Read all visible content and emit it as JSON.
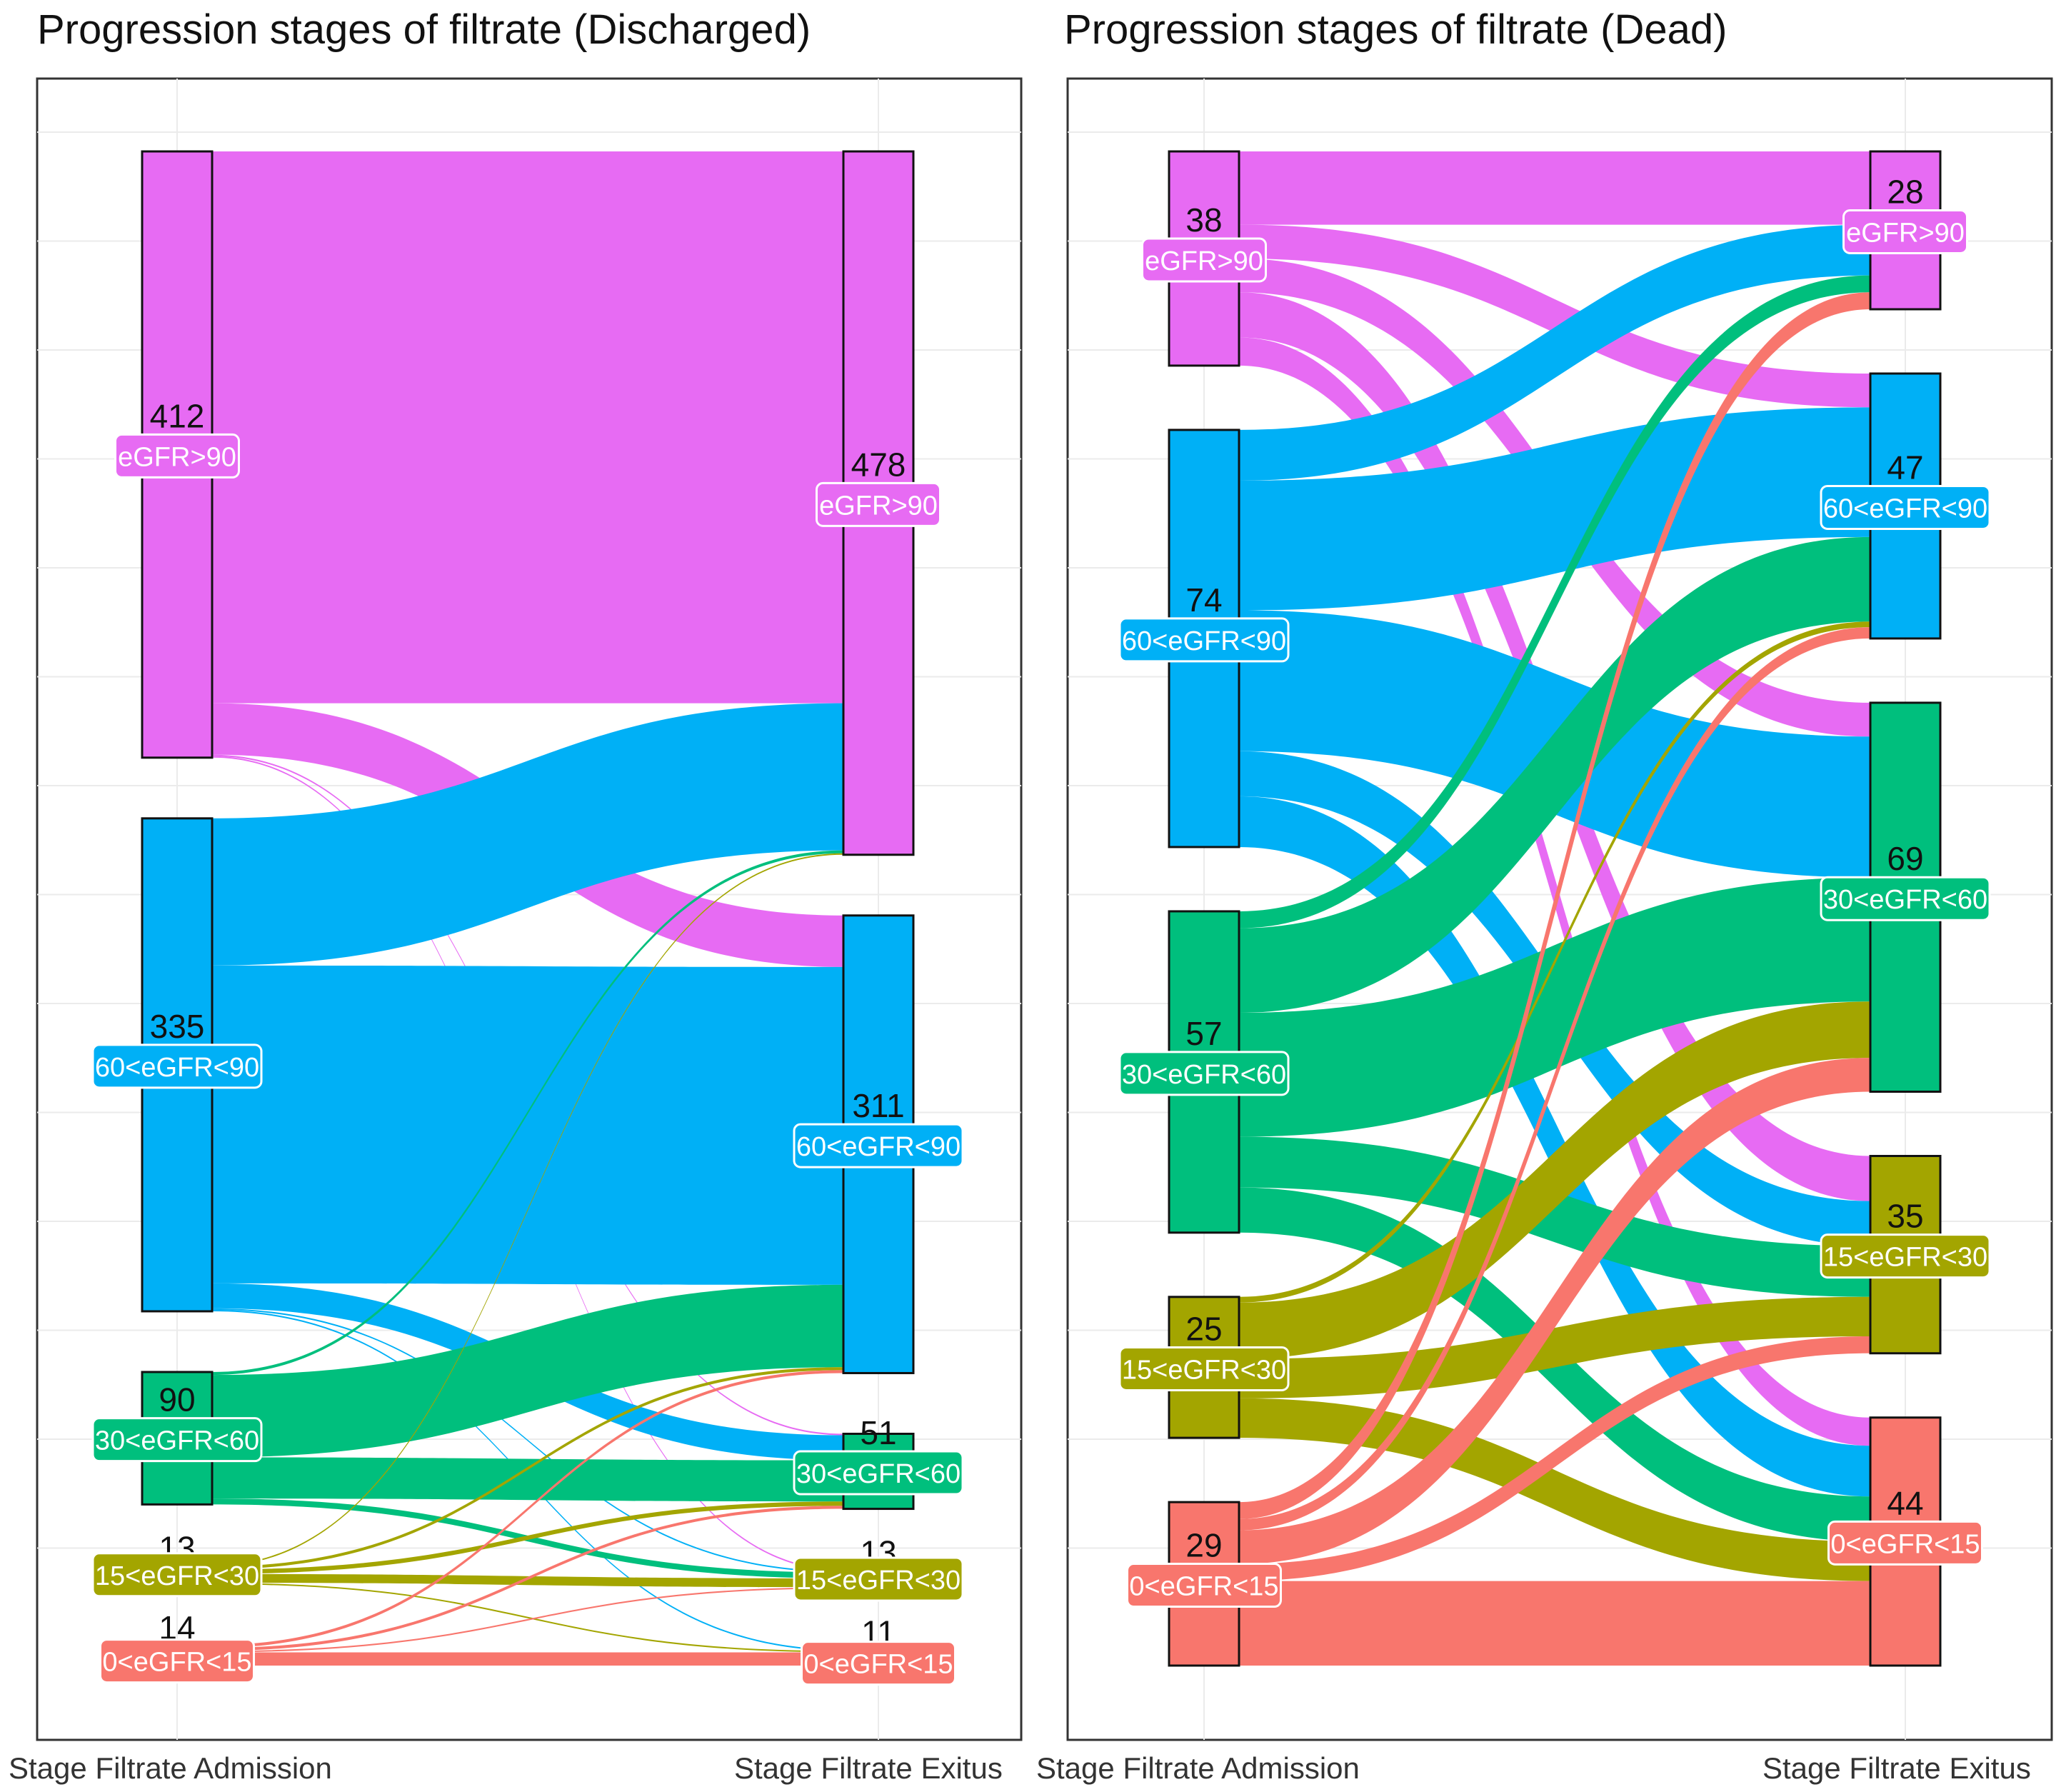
{
  "chart_data": [
    {
      "type": "sankey",
      "title": "Progression stages of filtrate (Discharged)",
      "axes": [
        "Stage Filtrate Admission",
        "Stage Filtrate Exitus"
      ],
      "stages": [
        "eGFR>90",
        "60<eGFR<90",
        "30<eGFR<60",
        "15<eGFR<30",
        "0<eGFR<15"
      ],
      "stage_colors": [
        "#e76bf3",
        "#00b0f6",
        "#00bf7d",
        "#a3a500",
        "#f8766d"
      ],
      "admission_counts": [
        412,
        335,
        90,
        13,
        14
      ],
      "exitus_counts": [
        478,
        311,
        51,
        13,
        11
      ],
      "flows": [
        [
          375,
          35,
          1,
          1,
          0
        ],
        [
          100,
          216,
          17,
          1,
          1
        ],
        [
          2,
          56,
          28,
          4,
          0
        ],
        [
          1,
          2,
          3,
          6,
          1
        ],
        [
          0,
          2,
          2,
          1,
          9
        ]
      ]
    },
    {
      "type": "sankey",
      "title": "Progression stages of filtrate (Dead)",
      "axes": [
        "Stage Filtrate Admission",
        "Stage Filtrate Exitus"
      ],
      "stages": [
        "eGFR>90",
        "60<eGFR<90",
        "30<eGFR<60",
        "15<eGFR<30",
        "0<eGFR<15"
      ],
      "stage_colors": [
        "#e76bf3",
        "#00b0f6",
        "#00bf7d",
        "#a3a500",
        "#f8766d"
      ],
      "admission_counts": [
        38,
        74,
        57,
        25,
        29
      ],
      "exitus_counts": [
        28,
        47,
        69,
        35,
        44
      ],
      "flows": [
        [
          13,
          6,
          6,
          8,
          5
        ],
        [
          9,
          23,
          25,
          8,
          9
        ],
        [
          3,
          15,
          22,
          9,
          8
        ],
        [
          0,
          1,
          10,
          7,
          7
        ],
        [
          3,
          2,
          6,
          3,
          15
        ]
      ]
    }
  ]
}
